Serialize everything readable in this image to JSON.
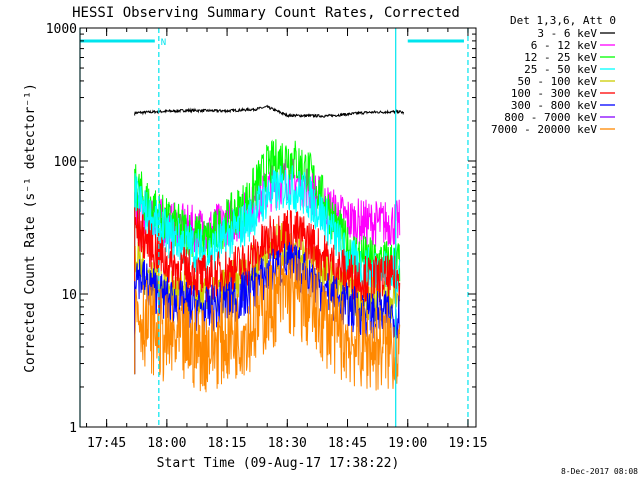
{
  "chart_data": {
    "type": "line",
    "title": "HESSI Observing Summary Count Rates, Corrected",
    "xlabel": "Start Time (09-Aug-17 17:38:22)",
    "ylabel": "Corrected Count Rate (s⁻¹ detector⁻¹)",
    "yscale": "log",
    "ylim": [
      1,
      1000
    ],
    "xlim": [
      "17:38:22",
      "19:17:00"
    ],
    "x_ticks": [
      "17:45",
      "18:00",
      "18:15",
      "18:30",
      "18:45",
      "19:00",
      "19:15"
    ],
    "y_ticks": [
      "1",
      "10",
      "100",
      "1000"
    ],
    "legend_title": "Det 1,3,6, Att 0",
    "legend_position": "right",
    "date_stamp": "8-Dec-2017 08:08",
    "grid": false,
    "series": [
      {
        "name": "3 - 6 keV",
        "color": "#000000",
        "x": [
          "17:52",
          "17:58",
          "18:05",
          "18:15",
          "18:22",
          "18:25",
          "18:30",
          "18:40",
          "18:50",
          "18:58",
          "18:59"
        ],
        "y": [
          230,
          235,
          240,
          238,
          245,
          255,
          220,
          218,
          232,
          235,
          230
        ]
      },
      {
        "name": "6 - 12 keV",
        "color": "#ff00ff",
        "x": [
          "17:52",
          "17:55",
          "18:00",
          "18:10",
          "18:20",
          "18:25",
          "18:30",
          "18:35",
          "18:40",
          "18:45",
          "18:50",
          "18:58"
        ],
        "y": [
          50,
          40,
          33,
          30,
          40,
          60,
          75,
          65,
          45,
          36,
          34,
          34
        ]
      },
      {
        "name": "12 - 25 keV",
        "color": "#00ff00",
        "x": [
          "17:52",
          "17:55",
          "18:00",
          "18:10",
          "18:20",
          "18:25",
          "18:30",
          "18:35",
          "18:40",
          "18:45",
          "18:50",
          "18:58"
        ],
        "y": [
          65,
          50,
          35,
          25,
          50,
          90,
          110,
          85,
          45,
          22,
          18,
          17
        ]
      },
      {
        "name": "25 - 50 keV",
        "color": "#00ffff",
        "x": [
          "17:52",
          "17:55",
          "18:00",
          "18:10",
          "18:20",
          "18:25",
          "18:30",
          "18:35",
          "18:40",
          "18:45",
          "18:50",
          "18:58"
        ],
        "y": [
          55,
          40,
          28,
          20,
          35,
          55,
          65,
          55,
          35,
          18,
          15,
          15
        ]
      },
      {
        "name": "50 - 100 keV",
        "color": "#cccc00",
        "x": [
          "17:52",
          "17:55",
          "18:00",
          "18:10",
          "18:20",
          "18:25",
          "18:30",
          "18:35",
          "18:40",
          "18:45",
          "18:50",
          "18:58"
        ],
        "y": [
          18,
          14,
          11,
          9,
          14,
          21,
          24,
          20,
          14,
          10,
          9,
          9
        ]
      },
      {
        "name": "100 - 300 keV",
        "color": "#ff0000",
        "x": [
          "17:52",
          "17:55",
          "18:00",
          "18:10",
          "18:20",
          "18:25",
          "18:30",
          "18:35",
          "18:40",
          "18:45",
          "18:50",
          "18:58"
        ],
        "y": [
          33,
          25,
          17,
          13,
          17,
          25,
          31,
          26,
          18,
          14,
          13,
          13
        ]
      },
      {
        "name": "300 - 800 keV",
        "color": "#0000ff",
        "x": [
          "17:52",
          "17:55",
          "18:00",
          "18:10",
          "18:20",
          "18:25",
          "18:30",
          "18:35",
          "18:40",
          "18:45",
          "18:50",
          "18:58"
        ],
        "y": [
          15,
          12,
          9,
          7.5,
          10,
          14,
          17,
          14,
          10,
          8,
          7,
          7
        ]
      },
      {
        "name": "800 - 7000 keV",
        "color": "#8800ff",
        "x": [],
        "y": []
      },
      {
        "name": "7000 - 20000 keV",
        "color": "#ff8800",
        "x": [
          "17:52",
          "17:55",
          "18:00",
          "18:10",
          "18:20",
          "18:25",
          "18:30",
          "18:35",
          "18:40",
          "18:45",
          "18:50",
          "18:58"
        ],
        "y": [
          8,
          6,
          4.5,
          4,
          5.5,
          8,
          10.5,
          8.5,
          6,
          4.5,
          4,
          4
        ]
      }
    ],
    "attenuator_bars": [
      {
        "x_start": "17:38:22",
        "x_end": "17:57",
        "label": "N"
      },
      {
        "x_start": "19:00",
        "x_end": "19:14",
        "label": ""
      }
    ],
    "vlines_solid": [
      "17:38:22",
      "18:57"
    ],
    "vlines_dashed": [
      "17:58",
      "19:15"
    ]
  }
}
